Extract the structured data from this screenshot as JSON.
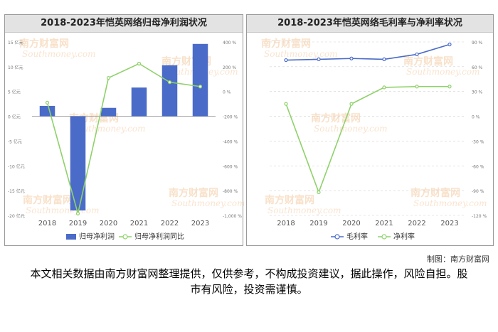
{
  "chart_data": [
    {
      "type": "bar",
      "title": "2018-2023年恺英网络归母净利润状况",
      "categories": [
        "2018",
        "2019",
        "2020",
        "2021",
        "2022",
        "2023"
      ],
      "series": [
        {
          "name": "归母净利润",
          "kind": "bar",
          "axis": "left",
          "color": "#4a6bc8",
          "values": [
            2.1,
            -19.0,
            1.7,
            5.8,
            10.3,
            14.6
          ]
        },
        {
          "name": "归母净利润同比",
          "kind": "line",
          "axis": "right",
          "color": "#8fd16a",
          "values": [
            -90,
            -985,
            110,
            225,
            75,
            40
          ]
        }
      ],
      "y_left": {
        "min": -20,
        "max": 15,
        "step": 5,
        "ticks": [
          "15 亿元",
          "10 亿元",
          "5 亿元",
          "0 亿元",
          "-5 亿元",
          "-10 亿元",
          "-15 亿元",
          "-20 亿元"
        ]
      },
      "y_right": {
        "min": -1000,
        "max": 400,
        "step": 200,
        "ticks": [
          "400 %",
          "200 %",
          "0 %",
          "-200 %",
          "-400 %",
          "-600 %",
          "-800 %",
          "-1,000 %"
        ]
      },
      "grid": false,
      "legend": "bottom"
    },
    {
      "type": "line",
      "title": "2018-2023年恺英网络毛利率与净利率状况",
      "categories": [
        "2018",
        "2019",
        "2020",
        "2021",
        "2022",
        "2023"
      ],
      "series": [
        {
          "name": "毛利率",
          "color": "#4a6bc8",
          "values": [
            68,
            69,
            70,
            69,
            75,
            87
          ]
        },
        {
          "name": "净利率",
          "color": "#8fd16a",
          "values": [
            15,
            -92,
            15,
            35,
            36,
            36
          ]
        }
      ],
      "y_right": {
        "min": -120,
        "max": 90,
        "step": 30,
        "ticks": [
          "90 %",
          "60 %",
          "30 %",
          "0 %",
          "-30 %",
          "-60 %",
          "-90 %",
          "-120 %"
        ]
      },
      "grid": true,
      "legend": "bottom"
    }
  ],
  "watermark": {
    "brand": "南方财富网",
    "site": "Southmoney.com"
  },
  "credit": "制图：南方财富网",
  "disclaimer": "本文相关数据由南方财富网整理提供，仅供参考，不构成投资建议，据此操作，风险自担。股市有风险，投资需谨慎。"
}
